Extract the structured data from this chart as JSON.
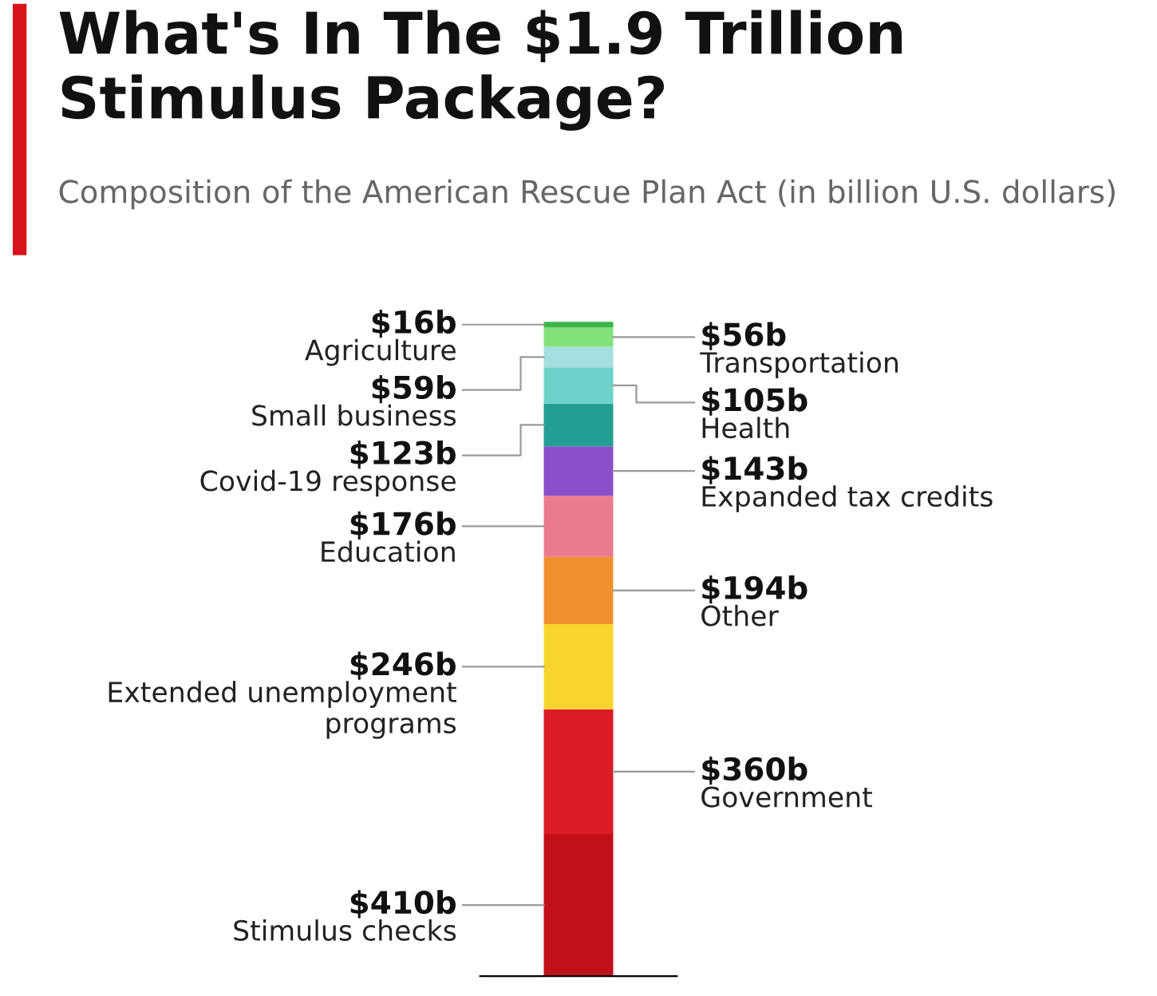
{
  "chart_data": {
    "type": "bar",
    "stacked": true,
    "title": "What's In The $1.9 Trillion Stimulus Package?",
    "subtitle": "Composition of the American Rescue Plan Act (in billion U.S. dollars)",
    "categories": [
      null
    ],
    "legend": false,
    "grid": false,
    "series": [
      {
        "name": "Stimulus checks",
        "color": "#c0111a",
        "values": [
          410
        ],
        "value_labels": [
          "$410b"
        ]
      },
      {
        "name": "Government",
        "color": "#dc1c24",
        "values": [
          360
        ],
        "value_labels": [
          "$360b"
        ]
      },
      {
        "name": "Extended unemployment programs",
        "color": "#f8d52e",
        "values": [
          246
        ],
        "value_labels": [
          "$246b"
        ]
      },
      {
        "name": "Other",
        "color": "#f0912e",
        "values": [
          194
        ],
        "value_labels": [
          "$194b"
        ]
      },
      {
        "name": "Education",
        "color": "#e97a8f",
        "values": [
          176
        ],
        "value_labels": [
          "$176b"
        ]
      },
      {
        "name": "Expanded tax credits",
        "color": "#8a4fc9",
        "values": [
          143
        ],
        "value_labels": [
          "$143b"
        ]
      },
      {
        "name": "Covid-19 response",
        "color": "#249e93",
        "values": [
          123
        ],
        "value_labels": [
          "$123b"
        ]
      },
      {
        "name": "Health",
        "color": "#6dd2c9",
        "values": [
          105
        ],
        "value_labels": [
          "$105b"
        ]
      },
      {
        "name": "Small business",
        "color": "#a6dfe1",
        "values": [
          59
        ],
        "value_labels": [
          "$59b"
        ]
      },
      {
        "name": "Transportation",
        "color": "#82e27a",
        "values": [
          56
        ],
        "value_labels": [
          "$56b"
        ]
      },
      {
        "name": "Agriculture",
        "color": "#3bb54a",
        "values": [
          16
        ],
        "value_labels": [
          "$16b"
        ]
      }
    ]
  }
}
